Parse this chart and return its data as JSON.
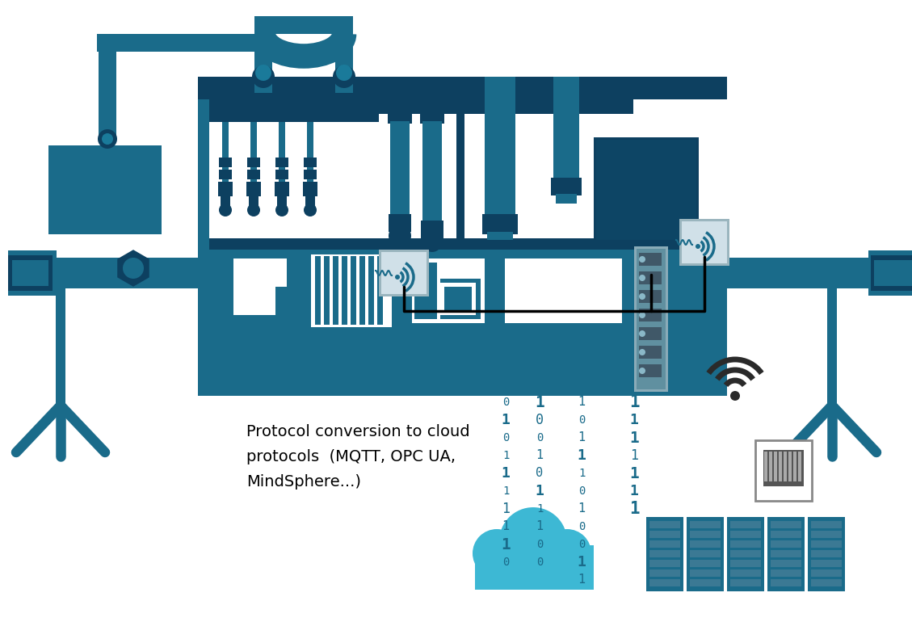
{
  "bg_color": "#ffffff",
  "MC": "#1a6b8a",
  "LB": "#3db8d4",
  "DT": "#0d4060",
  "binary_color": "#1a6b8a",
  "label_text": "Protocol conversion to cloud\nprotocols  (MQTT, OPC UA,\nMindSphere...)",
  "label_fontsize": 14,
  "fig_width": 11.29,
  "fig_height": 7.7,
  "dpi": 100
}
